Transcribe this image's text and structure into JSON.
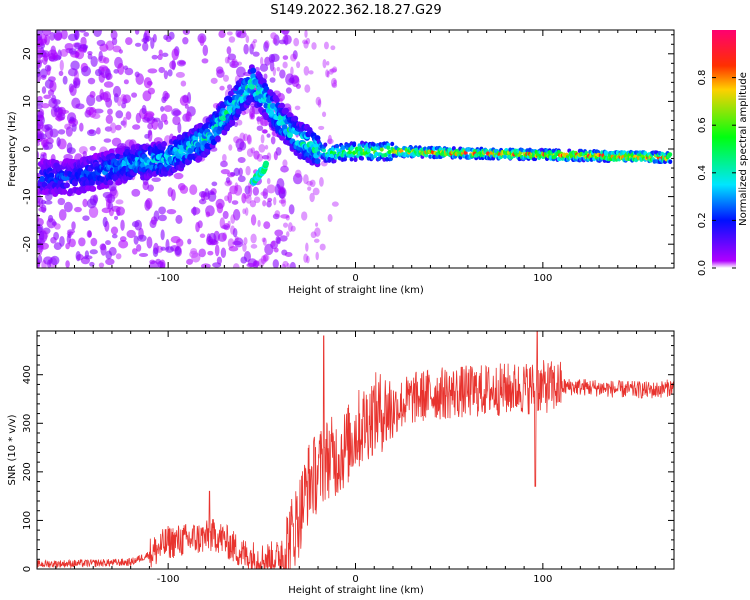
{
  "figure": {
    "title": "S149.2022.362.18.27.G29"
  },
  "chart_data": [
    {
      "type": "heatmap",
      "xlabel": "Height of straight line (km)",
      "ylabel": "Frequency (Hz)",
      "xlim": [
        -170,
        170
      ],
      "ylim": [
        -25,
        25
      ],
      "x_ticks": [
        -100,
        0,
        100
      ],
      "y_ticks": [
        20,
        10,
        0,
        -10,
        -20
      ],
      "colorbar": {
        "label": "Normalized spectral amplitude",
        "ticks": [
          0.0,
          0.2,
          0.4,
          0.6,
          0.8
        ],
        "range": [
          0,
          1
        ],
        "colormap": "gist_rainbow_r"
      },
      "ridge": {
        "description_points": [
          {
            "x": -150,
            "freq": -6,
            "amp": 0.25
          },
          {
            "x": -120,
            "freq": -3,
            "amp": 0.35
          },
          {
            "x": -100,
            "freq": -2,
            "amp": 0.4
          },
          {
            "x": -80,
            "freq": 2,
            "amp": 0.45
          },
          {
            "x": -55,
            "freq": 14,
            "amp": 0.5
          },
          {
            "x": -40,
            "freq": 6,
            "amp": 0.45
          },
          {
            "x": -30,
            "freq": 2,
            "amp": 0.5
          },
          {
            "x": -15,
            "freq": -1,
            "amp": 0.55
          },
          {
            "x": 0,
            "freq": -0.5,
            "amp": 0.65
          },
          {
            "x": 20,
            "freq": -0.5,
            "amp": 0.75
          },
          {
            "x": 50,
            "freq": -0.8,
            "amp": 0.85
          },
          {
            "x": 100,
            "freq": -1.2,
            "amp": 0.9
          },
          {
            "x": 170,
            "freq": -1.8,
            "amp": 0.95
          }
        ]
      }
    },
    {
      "type": "line",
      "xlabel": "Height of straight line (km)",
      "ylabel": "SNR (10 * v/v)",
      "xlim": [
        -170,
        170
      ],
      "ylim": [
        0,
        490
      ],
      "x_ticks": [
        -100,
        0,
        100
      ],
      "y_ticks": [
        0,
        100,
        200,
        300,
        400
      ],
      "series": [
        {
          "color": "#e8332e",
          "x": [
            -170,
            -140,
            -120,
            -110,
            -100,
            -90,
            -80,
            -75,
            -70,
            -60,
            -50,
            -40,
            -35,
            -30,
            -25,
            -20,
            -15,
            -10,
            -5,
            0,
            10,
            20,
            30,
            40,
            60,
            80,
            100,
            120,
            140,
            160,
            170
          ],
          "y": [
            10,
            12,
            14,
            30,
            55,
            60,
            65,
            70,
            60,
            30,
            20,
            25,
            60,
            110,
            180,
            200,
            230,
            230,
            250,
            280,
            320,
            330,
            350,
            360,
            365,
            370,
            375,
            375,
            370,
            368,
            375
          ]
        }
      ],
      "annotations": {
        "spikes": [
          {
            "x": -78,
            "y": 160
          },
          {
            "x": -17,
            "y": 480
          },
          {
            "x": 97,
            "y": 490
          },
          {
            "x": 96,
            "y": 170
          }
        ]
      }
    }
  ]
}
